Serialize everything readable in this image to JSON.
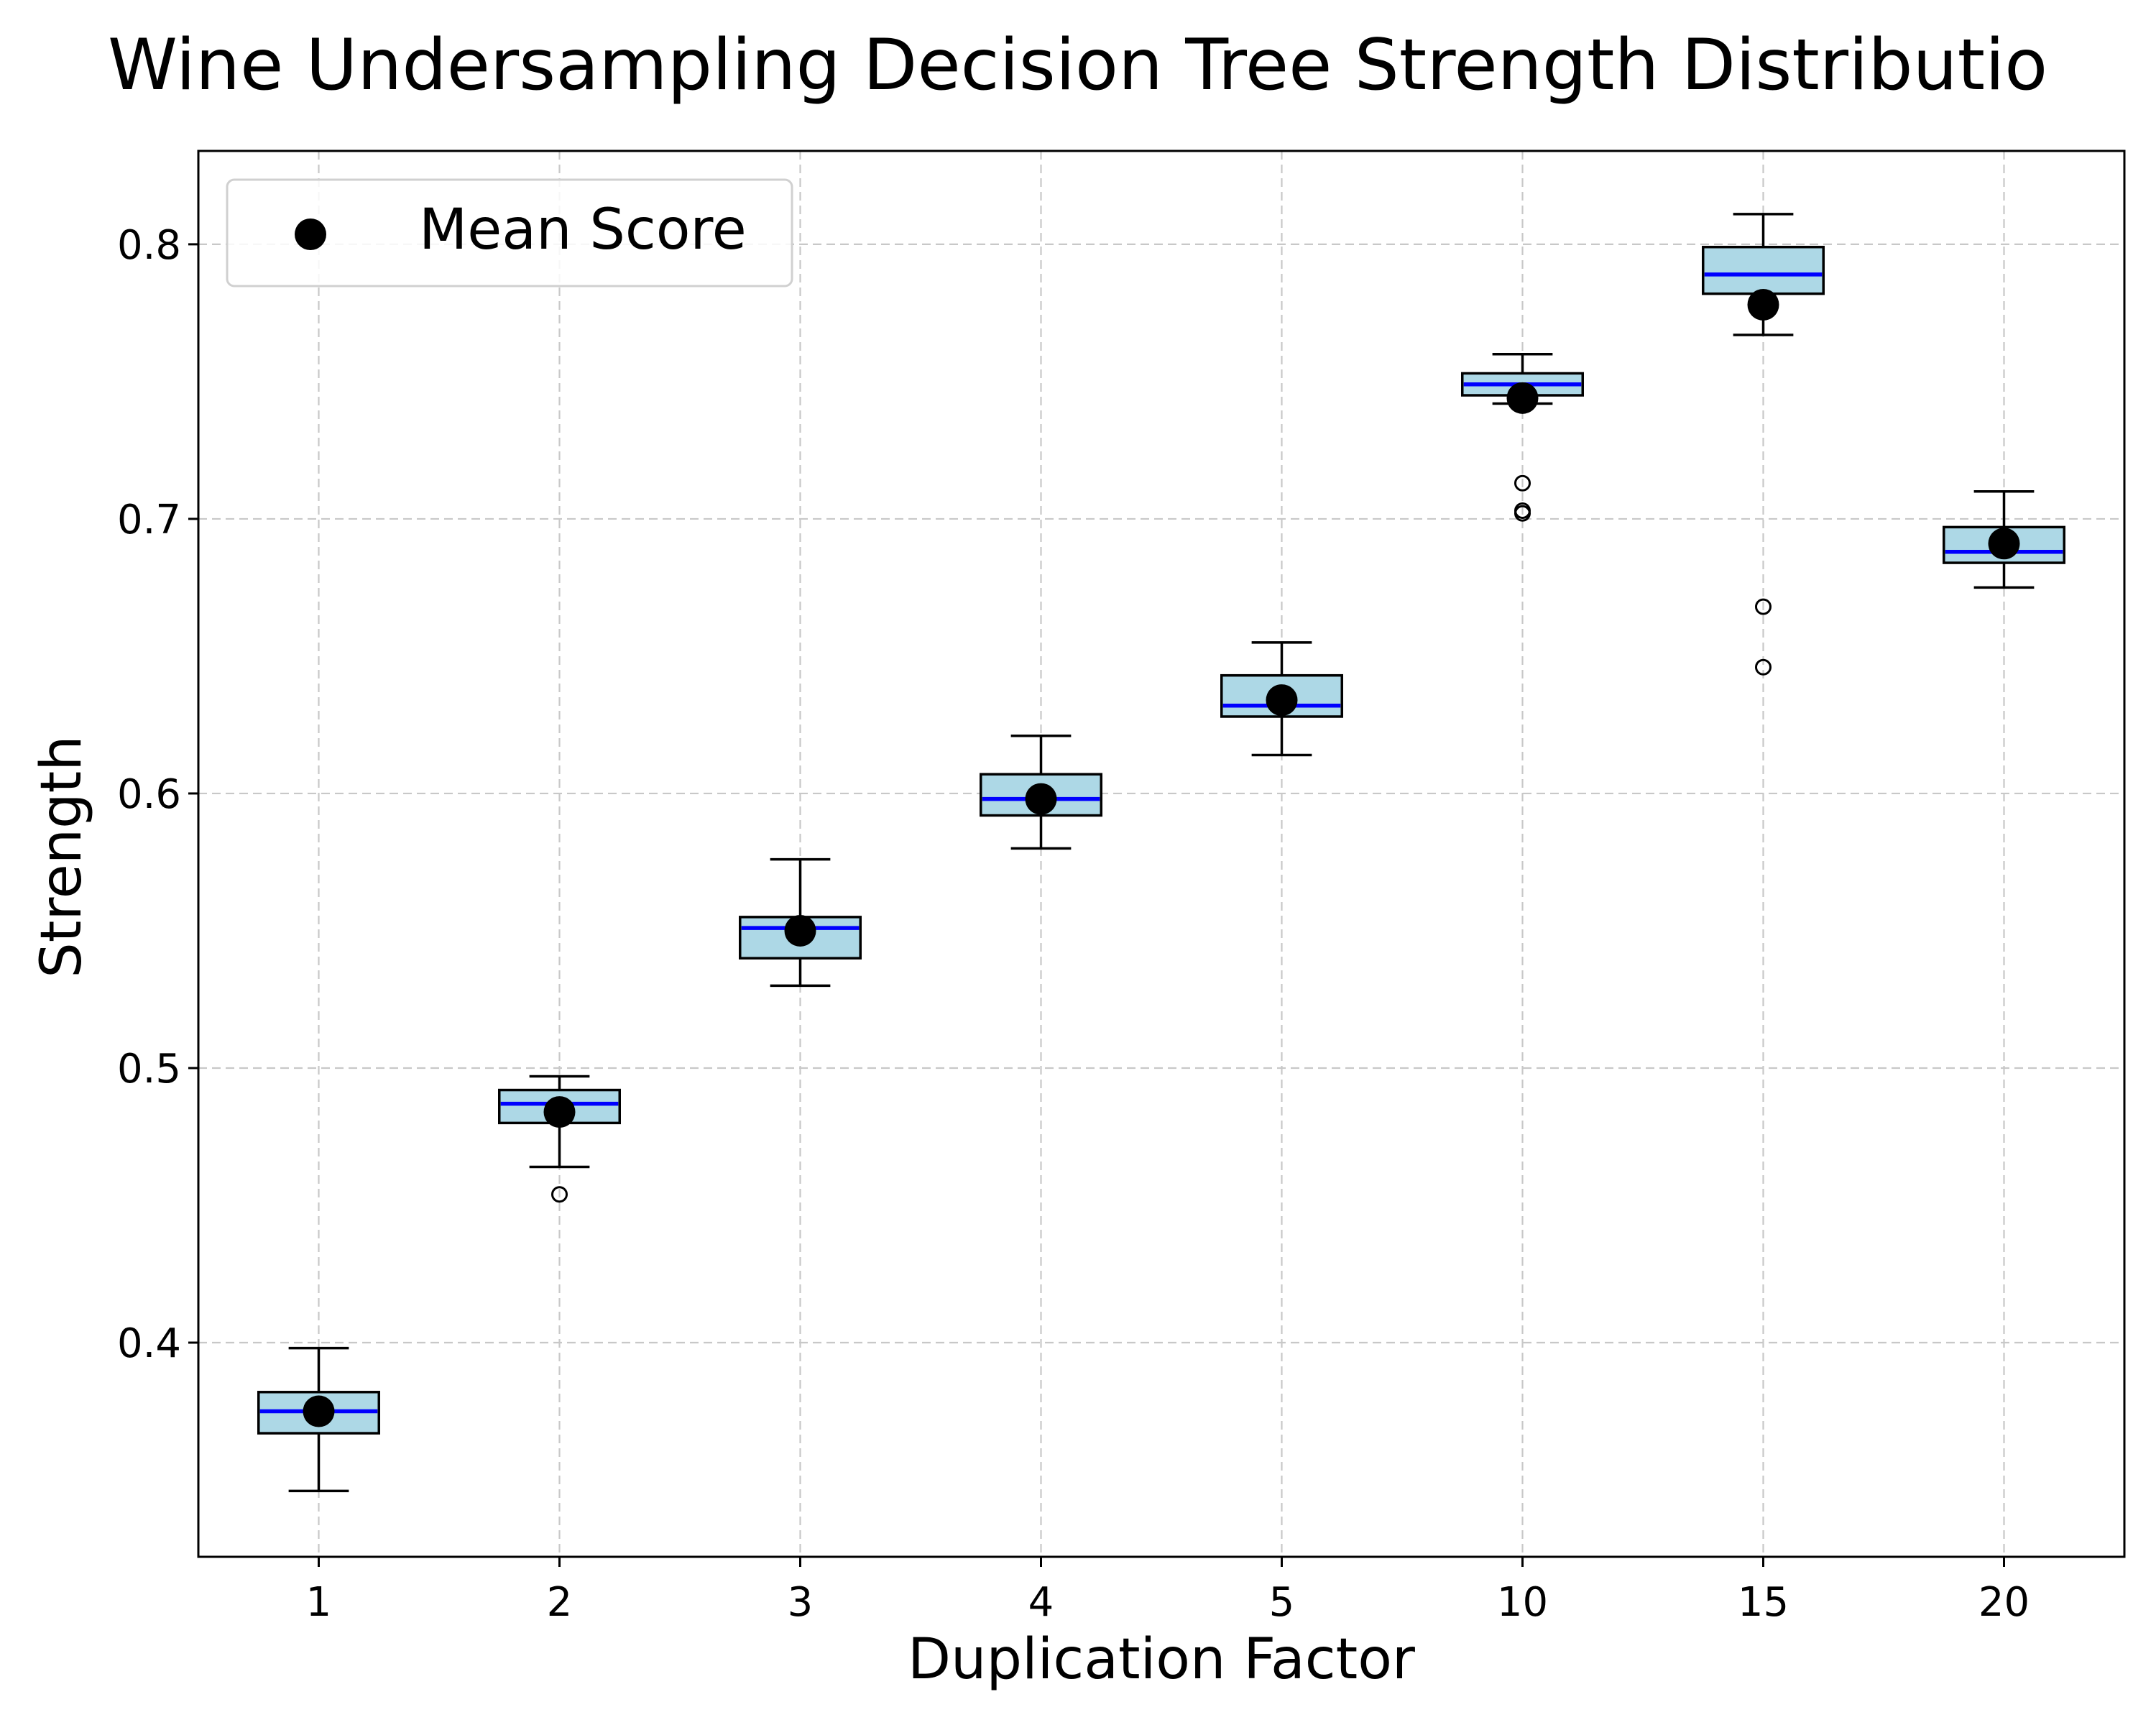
{
  "chart_data": {
    "type": "box",
    "title": "Wine Undersampling Decision Tree Strength Distributio",
    "xlabel": "Duplication Factor",
    "ylabel": "Strength",
    "categories": [
      "1",
      "2",
      "3",
      "4",
      "5",
      "10",
      "15",
      "20"
    ],
    "ylim": [
      0.322,
      0.834
    ],
    "yticks": [
      0.4,
      0.5,
      0.6,
      0.7,
      0.8
    ],
    "ytick_labels": [
      "0.4",
      "0.5",
      "0.6",
      "0.7",
      "0.8"
    ],
    "grid": true,
    "legend": {
      "position": "upper-left",
      "entries": [
        "Mean Score"
      ]
    },
    "colors": {
      "box_fill": "#add8e6",
      "median": "#0000ff",
      "mean_marker": "#000000"
    },
    "boxes": [
      {
        "category": "1",
        "whisker_low": 0.346,
        "q1": 0.367,
        "median": 0.375,
        "q3": 0.382,
        "whisker_high": 0.398,
        "mean": 0.375,
        "fliers": []
      },
      {
        "category": "2",
        "whisker_low": 0.464,
        "q1": 0.48,
        "median": 0.487,
        "q3": 0.492,
        "whisker_high": 0.497,
        "mean": 0.484,
        "fliers": [
          0.454
        ]
      },
      {
        "category": "3",
        "whisker_low": 0.53,
        "q1": 0.54,
        "median": 0.551,
        "q3": 0.555,
        "whisker_high": 0.576,
        "mean": 0.55,
        "fliers": []
      },
      {
        "category": "4",
        "whisker_low": 0.58,
        "q1": 0.592,
        "median": 0.598,
        "q3": 0.607,
        "whisker_high": 0.621,
        "mean": 0.598,
        "fliers": []
      },
      {
        "category": "5",
        "whisker_low": 0.614,
        "q1": 0.628,
        "median": 0.632,
        "q3": 0.643,
        "whisker_high": 0.655,
        "mean": 0.634,
        "fliers": []
      },
      {
        "category": "10",
        "whisker_low": 0.742,
        "q1": 0.745,
        "median": 0.749,
        "q3": 0.753,
        "whisker_high": 0.76,
        "mean": 0.744,
        "fliers": [
          0.713,
          0.703,
          0.702
        ]
      },
      {
        "category": "15",
        "whisker_low": 0.767,
        "q1": 0.782,
        "median": 0.789,
        "q3": 0.799,
        "whisker_high": 0.811,
        "mean": 0.778,
        "fliers": [
          0.668,
          0.646
        ]
      },
      {
        "category": "20",
        "whisker_low": 0.675,
        "q1": 0.684,
        "median": 0.688,
        "q3": 0.697,
        "whisker_high": 0.71,
        "mean": 0.691,
        "fliers": []
      }
    ]
  }
}
